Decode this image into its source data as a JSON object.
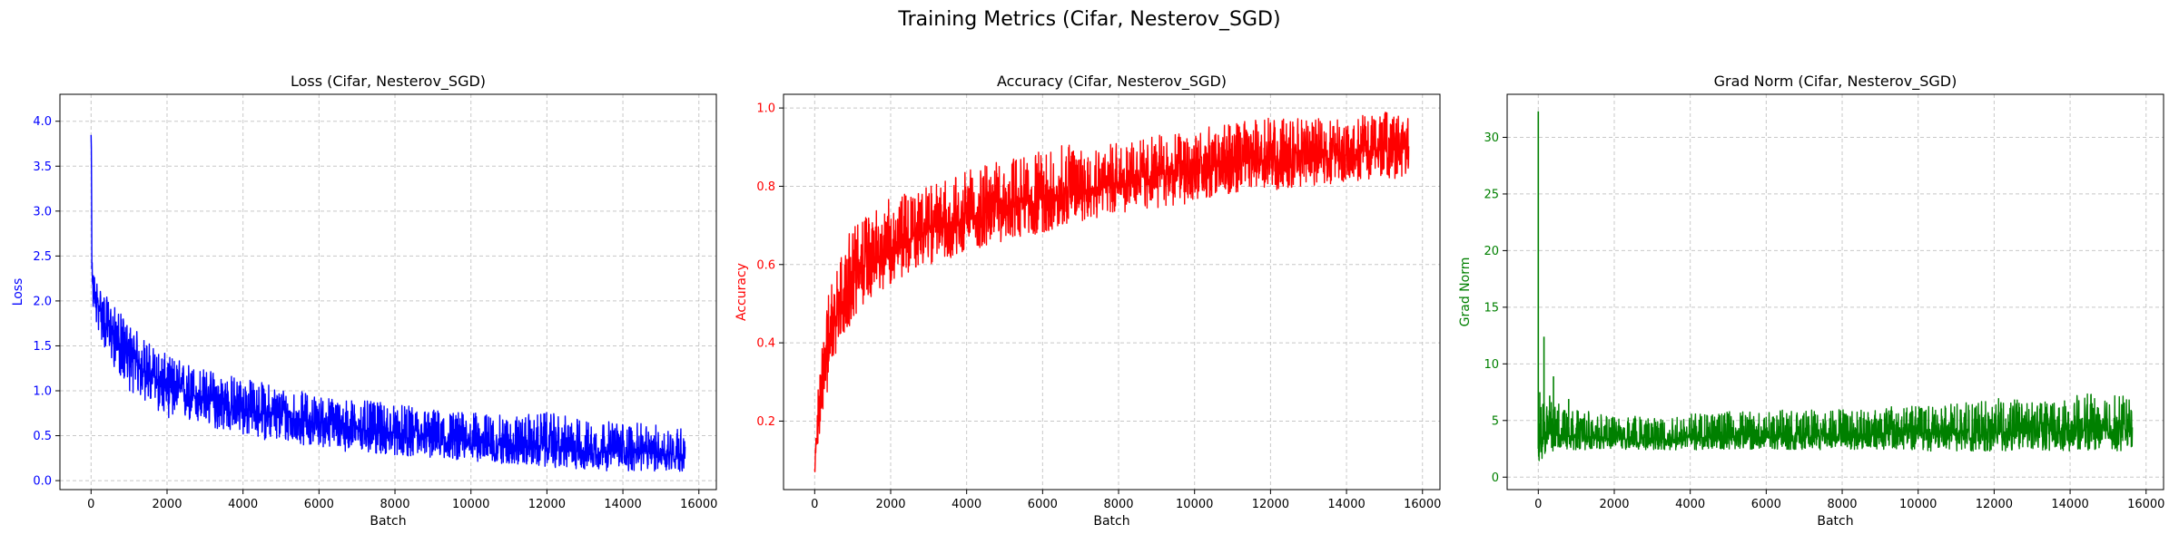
{
  "figure": {
    "suptitle": "Training Metrics (Cifar, Nesterov_SGD)"
  },
  "chart_data": [
    {
      "type": "line",
      "title": "Loss (Cifar, Nesterov_SGD)",
      "xlabel": "Batch",
      "ylabel": "Loss",
      "color": "#0000ff",
      "xlim": [
        -820,
        16460
      ],
      "ylim": [
        -0.1,
        4.3
      ],
      "xticks": [
        0,
        2000,
        4000,
        6000,
        8000,
        10000,
        12000,
        14000,
        16000
      ],
      "yticks": [
        0.0,
        0.5,
        1.0,
        1.5,
        2.0,
        2.5,
        3.0,
        3.5,
        4.0
      ],
      "ytick_decimals": 1,
      "grid": true,
      "n_points": 15640,
      "series": [
        {
          "x": [
            0,
            30,
            100,
            200,
            400,
            700,
            1000,
            1500,
            2000,
            3000,
            4000,
            5000,
            6000,
            7000,
            8000,
            9000,
            10000,
            11000,
            12000,
            13000,
            14000,
            15000,
            15640
          ],
          "y_mean": [
            3.8,
            2.2,
            2.05,
            1.95,
            1.75,
            1.55,
            1.4,
            1.2,
            1.05,
            0.9,
            0.8,
            0.72,
            0.65,
            0.58,
            0.52,
            0.48,
            0.44,
            0.4,
            0.37,
            0.34,
            0.32,
            0.3,
            0.29
          ],
          "y_min": [
            3.2,
            1.9,
            1.75,
            1.65,
            1.4,
            1.2,
            1.0,
            0.85,
            0.7,
            0.6,
            0.5,
            0.42,
            0.38,
            0.3,
            0.28,
            0.25,
            0.22,
            0.18,
            0.15,
            0.12,
            0.1,
            0.1,
            0.1
          ],
          "y_max": [
            4.12,
            2.35,
            2.3,
            2.2,
            2.05,
            1.9,
            1.75,
            1.55,
            1.4,
            1.25,
            1.15,
            1.05,
            0.95,
            0.9,
            0.85,
            0.8,
            0.76,
            0.72,
            0.76,
            0.68,
            0.65,
            0.62,
            0.6
          ]
        }
      ]
    },
    {
      "type": "line",
      "title": "Accuracy (Cifar, Nesterov_SGD)",
      "xlabel": "Batch",
      "ylabel": "Accuracy",
      "color": "#ff0000",
      "xlim": [
        -820,
        16460
      ],
      "ylim": [
        0.025,
        1.035
      ],
      "xticks": [
        0,
        2000,
        4000,
        6000,
        8000,
        10000,
        12000,
        14000,
        16000
      ],
      "yticks": [
        0.2,
        0.4,
        0.6,
        0.8,
        1.0
      ],
      "ytick_decimals": 1,
      "grid": true,
      "n_points": 15640,
      "series": [
        {
          "x": [
            0,
            50,
            100,
            200,
            400,
            700,
            1000,
            1500,
            2000,
            3000,
            4000,
            5000,
            6000,
            7000,
            8000,
            9000,
            10000,
            11000,
            12000,
            13000,
            14000,
            15000,
            15640
          ],
          "y_mean": [
            0.08,
            0.15,
            0.22,
            0.3,
            0.42,
            0.5,
            0.56,
            0.61,
            0.64,
            0.69,
            0.72,
            0.75,
            0.77,
            0.79,
            0.81,
            0.83,
            0.845,
            0.86,
            0.87,
            0.88,
            0.89,
            0.895,
            0.9
          ],
          "y_min": [
            0.06,
            0.09,
            0.14,
            0.2,
            0.3,
            0.4,
            0.46,
            0.52,
            0.55,
            0.6,
            0.63,
            0.66,
            0.68,
            0.71,
            0.73,
            0.74,
            0.76,
            0.78,
            0.79,
            0.8,
            0.81,
            0.82,
            0.82
          ],
          "y_max": [
            0.12,
            0.22,
            0.3,
            0.4,
            0.55,
            0.63,
            0.7,
            0.74,
            0.77,
            0.8,
            0.84,
            0.87,
            0.89,
            0.92,
            0.91,
            0.93,
            0.95,
            0.96,
            0.98,
            0.97,
            0.98,
            0.99,
            0.98
          ]
        }
      ]
    },
    {
      "type": "line",
      "title": "Grad Norm (Cifar, Nesterov_SGD)",
      "xlabel": "Batch",
      "ylabel": "Grad Norm",
      "color": "#008000",
      "xlim": [
        -820,
        16460
      ],
      "ylim": [
        -1.1,
        33.8
      ],
      "xticks": [
        0,
        2000,
        4000,
        6000,
        8000,
        10000,
        12000,
        14000,
        16000
      ],
      "yticks": [
        0,
        5,
        10,
        15,
        20,
        25,
        30
      ],
      "ytick_decimals": 0,
      "grid": true,
      "n_points": 15640,
      "spikes": [
        [
          0,
          32.3
        ],
        [
          40,
          7.5
        ],
        [
          150,
          12.4
        ],
        [
          300,
          7.2
        ],
        [
          400,
          8.9
        ],
        [
          800,
          6.9
        ]
      ],
      "series": [
        {
          "x": [
            0,
            100,
            300,
            600,
            1000,
            2000,
            3000,
            4000,
            5000,
            6000,
            7000,
            8000,
            9000,
            10000,
            11000,
            12000,
            13000,
            14000,
            15000,
            15640
          ],
          "y_mean": [
            2.5,
            3.5,
            4.0,
            3.8,
            3.5,
            3.4,
            3.4,
            3.5,
            3.5,
            3.6,
            3.7,
            3.7,
            3.8,
            3.9,
            3.9,
            4.0,
            4.0,
            4.1,
            4.1,
            4.2
          ],
          "y_min": [
            0.4,
            1.5,
            2.2,
            2.4,
            2.4,
            2.4,
            2.4,
            2.4,
            2.4,
            2.4,
            2.4,
            2.4,
            2.4,
            2.3,
            2.3,
            2.3,
            2.3,
            2.3,
            2.3,
            2.3
          ],
          "y_max": [
            5.0,
            7.0,
            7.0,
            6.5,
            6.0,
            5.6,
            5.6,
            5.7,
            5.8,
            5.9,
            6.0,
            6.1,
            6.2,
            6.3,
            6.5,
            7.0,
            6.8,
            7.2,
            7.5,
            7.0
          ]
        }
      ]
    }
  ]
}
